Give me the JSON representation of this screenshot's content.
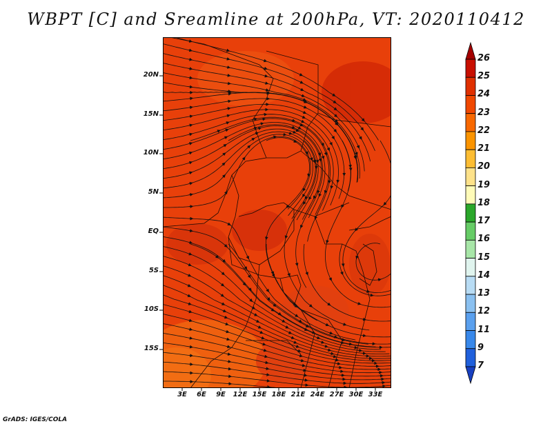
{
  "title": "WBPT [C] and Sreamline at 200hPa, VT: 2020110412",
  "credit": "GrADS: IGES/COLA",
  "lat_labels": [
    "20N",
    "15N",
    "10N",
    "5N",
    "EQ",
    "5S",
    "10S",
    "15S"
  ],
  "lon_labels": [
    "3E",
    "6E",
    "9E",
    "12E",
    "15E",
    "18E",
    "21E",
    "24E",
    "27E",
    "30E",
    "33E"
  ],
  "colorbar": {
    "labels": [
      "26",
      "25",
      "24",
      "23",
      "22",
      "21",
      "20",
      "19",
      "18",
      "17",
      "16",
      "15",
      "14",
      "13",
      "12",
      "11",
      "9",
      "7"
    ],
    "colors": [
      "#a50000",
      "#c80f00",
      "#e03000",
      "#f04800",
      "#f86800",
      "#fb9400",
      "#fdbd33",
      "#fee28a",
      "#fffbb8",
      "#2aa72a",
      "#66cc66",
      "#a8e6a8",
      "#e0f4ee",
      "#b8dcf4",
      "#8ac0f0",
      "#5aa0ee",
      "#3888ea",
      "#2060dc",
      "#1840c0"
    ]
  },
  "map": {
    "background_color": "#e8400a",
    "field": "Wet-bulb potential temperature (C) at 200hPa with streamlines",
    "region": "Central Africa, 0E–35E, 20S–24N"
  }
}
